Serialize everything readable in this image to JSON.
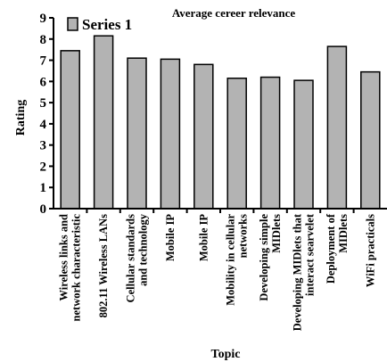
{
  "chart_data": {
    "type": "bar",
    "title": "Average cereer relevance",
    "xlabel": "Topic",
    "ylabel": "Rating",
    "ylim": [
      0,
      9
    ],
    "yticks": [
      "0",
      "1",
      "2",
      "3",
      "4",
      "5",
      "6",
      "7",
      "8",
      "9"
    ],
    "grid": false,
    "legend_position": "top-left",
    "bar_color": "#b3b3b3",
    "categories": [
      [
        "Wireless links and",
        "network characteristic"
      ],
      [
        "802.11 Wireless LANs"
      ],
      [
        "Cellular standards",
        "and technology"
      ],
      [
        "Mobile IP"
      ],
      [
        "Mobile IP"
      ],
      [
        "Mobility in cellular",
        "networks"
      ],
      [
        "Developing simple",
        "MIDlets"
      ],
      [
        "Developing MIDlets that",
        "interact searvelet"
      ],
      [
        "Deployment of",
        "MIDlets"
      ],
      [
        "WiFi practicals"
      ]
    ],
    "series": [
      {
        "name": "Series 1",
        "values": [
          7.45,
          8.15,
          7.1,
          7.05,
          6.8,
          6.15,
          6.2,
          6.05,
          7.65,
          6.45
        ]
      }
    ]
  }
}
